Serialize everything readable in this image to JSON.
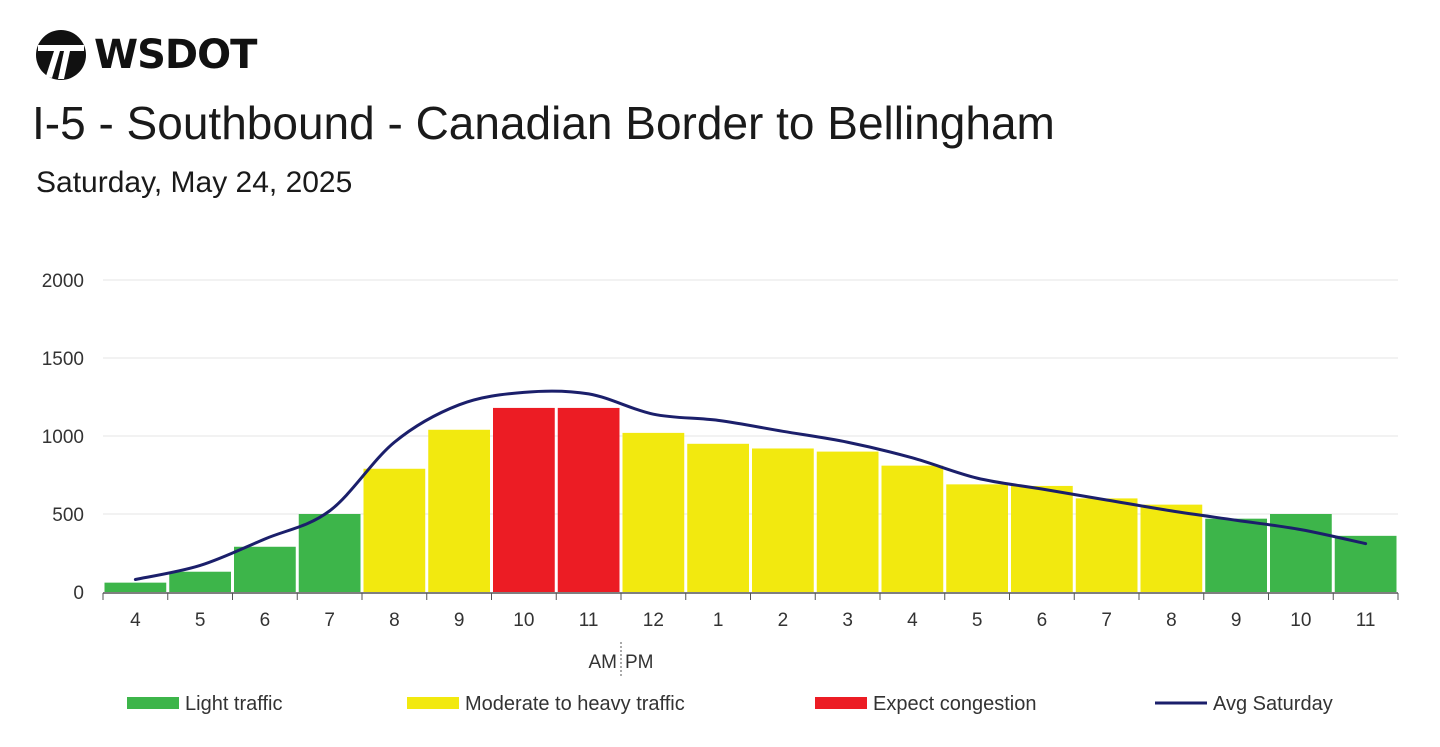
{
  "header": {
    "logo_text": "WSDOT",
    "logo_icon": "wsdot-logo-icon",
    "title": "I-5 - Southbound - Canadian Border to Bellingham",
    "subtitle": "Saturday, May 24, 2025"
  },
  "colors": {
    "light": "#3db54a",
    "moderate": "#f2e90f",
    "congestion": "#ec1c24",
    "avg_line": "#1b1f6b",
    "grid": "#e6e6e6",
    "axis": "#555555"
  },
  "chart_data": {
    "type": "bar",
    "categories": [
      "4",
      "5",
      "6",
      "7",
      "8",
      "9",
      "10",
      "11",
      "12",
      "1",
      "2",
      "3",
      "4",
      "5",
      "6",
      "7",
      "8",
      "9",
      "10",
      "11"
    ],
    "values": [
      60,
      130,
      290,
      500,
      790,
      1040,
      1180,
      1180,
      1020,
      950,
      920,
      900,
      810,
      690,
      680,
      600,
      560,
      470,
      500,
      360
    ],
    "levels": [
      "light",
      "light",
      "light",
      "light",
      "moderate",
      "moderate",
      "congestion",
      "congestion",
      "moderate",
      "moderate",
      "moderate",
      "moderate",
      "moderate",
      "moderate",
      "moderate",
      "moderate",
      "moderate",
      "light",
      "light",
      "light"
    ],
    "avg_line": {
      "name": "Avg Saturday",
      "values": [
        80,
        170,
        340,
        520,
        960,
        1200,
        1280,
        1270,
        1140,
        1100,
        1030,
        960,
        860,
        730,
        660,
        590,
        520,
        460,
        400,
        310
      ]
    },
    "ylim": [
      0,
      2000
    ],
    "yticks": [
      0,
      500,
      1000,
      1500,
      2000
    ],
    "grid": true,
    "am_pm_divider": {
      "between": [
        7,
        8
      ],
      "am_label": "AM",
      "pm_label": "PM"
    },
    "legend": {
      "placement": "bottom",
      "items": [
        {
          "key": "light",
          "label": "Light traffic",
          "type": "bar"
        },
        {
          "key": "moderate",
          "label": "Moderate to heavy traffic",
          "type": "bar"
        },
        {
          "key": "congestion",
          "label": "Expect congestion",
          "type": "bar"
        },
        {
          "key": "avg_line",
          "label": "Avg Saturday",
          "type": "line"
        }
      ]
    }
  }
}
